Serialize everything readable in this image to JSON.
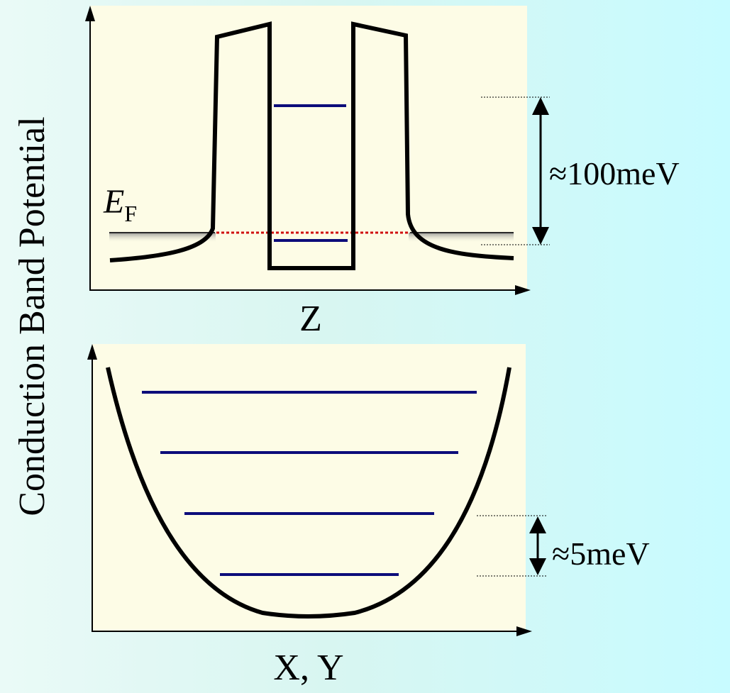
{
  "y_axis_label": "Conduction Band Potential",
  "fermi_label": {
    "main": "E",
    "sub": "F"
  },
  "top_panel": {
    "x_axis_label": "Z",
    "scale_annotation": "≈100meV"
  },
  "bottom_panel": {
    "x_axis_label": "X, Y",
    "scale_annotation": "≈5meV"
  },
  "colors": {
    "panel_background": "#fdfce6",
    "potential_curve": "#000000",
    "energy_level": "#0c0c7a",
    "fermi_level": "#d01010",
    "fermi_shading": "#909090"
  }
}
